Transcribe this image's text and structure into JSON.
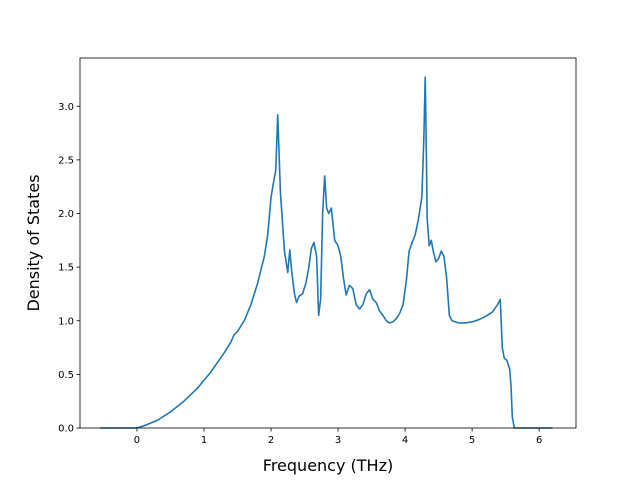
{
  "chart_data": {
    "type": "line",
    "title": "",
    "xlabel": "Frequency (THz)",
    "ylabel": "Density of States",
    "xlim": [
      -0.85,
      6.55
    ],
    "ylim": [
      0.0,
      3.45
    ],
    "xticks": [
      0,
      1,
      2,
      3,
      4,
      5,
      6
    ],
    "yticks": [
      0.0,
      0.5,
      1.0,
      1.5,
      2.0,
      2.5,
      3.0
    ],
    "xtick_labels": [
      "0",
      "1",
      "2",
      "3",
      "4",
      "5",
      "6"
    ],
    "ytick_labels": [
      "0.0",
      "0.5",
      "1.0",
      "1.5",
      "2.0",
      "2.5",
      "3.0"
    ],
    "grid": false,
    "legend": null,
    "line_color": "#1f77b4",
    "series": [
      {
        "x": [
          -0.55,
          -0.2,
          0.0,
          0.1,
          0.3,
          0.5,
          0.7,
          0.9,
          1.1,
          1.3,
          1.4,
          1.45,
          1.5,
          1.6,
          1.7,
          1.8,
          1.9,
          1.95,
          2.0,
          2.04,
          2.07,
          2.1,
          2.14,
          2.2,
          2.25,
          2.28,
          2.31,
          2.35,
          2.38,
          2.42,
          2.47,
          2.52,
          2.56,
          2.6,
          2.64,
          2.68,
          2.71,
          2.74,
          2.77,
          2.8,
          2.83,
          2.86,
          2.9,
          2.95,
          3.0,
          3.04,
          3.08,
          3.12,
          3.17,
          3.22,
          3.27,
          3.32,
          3.37,
          3.42,
          3.47,
          3.52,
          3.57,
          3.62,
          3.67,
          3.72,
          3.77,
          3.82,
          3.87,
          3.92,
          3.97,
          4.02,
          4.06,
          4.1,
          4.15,
          4.2,
          4.25,
          4.28,
          4.3,
          4.31,
          4.33,
          4.36,
          4.39,
          4.42,
          4.46,
          4.5,
          4.54,
          4.58,
          4.62,
          4.66,
          4.7,
          4.8,
          4.9,
          5.0,
          5.1,
          5.2,
          5.3,
          5.38,
          5.42,
          5.45,
          5.48,
          5.52,
          5.56,
          5.58,
          5.6,
          5.63,
          5.65,
          6.0,
          6.2
        ],
        "y": [
          0.0,
          0.0,
          0.0,
          0.02,
          0.07,
          0.15,
          0.25,
          0.37,
          0.52,
          0.7,
          0.8,
          0.87,
          0.9,
          1.0,
          1.15,
          1.35,
          1.6,
          1.8,
          2.15,
          2.3,
          2.4,
          2.92,
          2.2,
          1.65,
          1.45,
          1.66,
          1.45,
          1.25,
          1.17,
          1.23,
          1.25,
          1.35,
          1.48,
          1.67,
          1.73,
          1.6,
          1.05,
          1.2,
          2.0,
          2.35,
          2.05,
          2.0,
          2.05,
          1.75,
          1.7,
          1.6,
          1.4,
          1.24,
          1.33,
          1.3,
          1.15,
          1.11,
          1.15,
          1.25,
          1.29,
          1.2,
          1.17,
          1.09,
          1.05,
          1.0,
          0.98,
          0.99,
          1.02,
          1.07,
          1.15,
          1.38,
          1.65,
          1.72,
          1.8,
          1.95,
          2.15,
          2.7,
          3.27,
          2.9,
          1.95,
          1.7,
          1.75,
          1.65,
          1.55,
          1.58,
          1.65,
          1.6,
          1.4,
          1.05,
          1.0,
          0.98,
          0.98,
          0.99,
          1.01,
          1.04,
          1.08,
          1.15,
          1.2,
          0.75,
          0.65,
          0.63,
          0.55,
          0.4,
          0.1,
          0.0,
          0.0,
          0.0,
          0.0
        ]
      }
    ]
  }
}
